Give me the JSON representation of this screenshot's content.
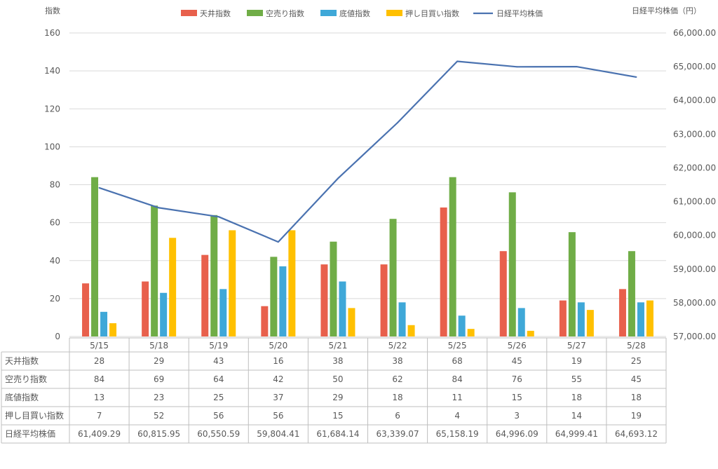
{
  "chart_data": {
    "type": "bar",
    "title": "",
    "ylabel": "指数",
    "y2label": "日経平均株価（円）",
    "ylim": [
      0,
      160
    ],
    "yticks": [
      "0",
      "20",
      "40",
      "60",
      "80",
      "100",
      "120",
      "140",
      "160"
    ],
    "y2lim": [
      57000,
      66000
    ],
    "y2ticks": [
      "57,000.00",
      "58,000.00",
      "59,000.00",
      "60,000.00",
      "61,000.00",
      "62,000.00",
      "63,000.00",
      "64,000.00",
      "65,000.00",
      "66,000.00"
    ],
    "grid": true,
    "legend_position": "top",
    "categories": [
      "5/15",
      "5/18",
      "5/19",
      "5/20",
      "5/21",
      "5/22",
      "5/25",
      "5/26",
      "5/27",
      "5/28"
    ],
    "series": [
      {
        "name": "天井指数",
        "type": "bar",
        "axis": "left",
        "color": "#E8604C",
        "values": [
          28,
          29,
          43,
          16,
          38,
          38,
          68,
          45,
          19,
          25
        ],
        "labels": [
          "28",
          "29",
          "43",
          "16",
          "38",
          "38",
          "68",
          "45",
          "19",
          "25"
        ]
      },
      {
        "name": "空売り指数",
        "type": "bar",
        "axis": "left",
        "color": "#70AD47",
        "values": [
          84,
          69,
          64,
          42,
          50,
          62,
          84,
          76,
          55,
          45
        ],
        "labels": [
          "84",
          "69",
          "64",
          "42",
          "50",
          "62",
          "84",
          "76",
          "55",
          "45"
        ]
      },
      {
        "name": "底値指数",
        "type": "bar",
        "axis": "left",
        "color": "#3FA8D8",
        "values": [
          13,
          23,
          25,
          37,
          29,
          18,
          11,
          15,
          18,
          18
        ],
        "labels": [
          "13",
          "23",
          "25",
          "37",
          "29",
          "18",
          "11",
          "15",
          "18",
          "18"
        ]
      },
      {
        "name": "押し目買い指数",
        "type": "bar",
        "axis": "left",
        "color": "#FFC000",
        "values": [
          7,
          52,
          56,
          56,
          15,
          6,
          4,
          3,
          14,
          19
        ],
        "labels": [
          "7",
          "52",
          "56",
          "56",
          "15",
          "6",
          "4",
          "3",
          "14",
          "19"
        ]
      },
      {
        "name": "日経平均株価",
        "type": "line",
        "axis": "right",
        "color": "#4A72B0",
        "values": [
          61409.29,
          60815.95,
          60550.59,
          59804.41,
          61684.14,
          63339.07,
          65158.19,
          64996.09,
          64999.41,
          64693.12
        ],
        "labels": [
          "61,409.29",
          "60,815.95",
          "60,550.59",
          "59,804.41",
          "61,684.14",
          "63,339.07",
          "65,158.19",
          "64,996.09",
          "64,999.41",
          "64,693.12"
        ]
      }
    ]
  }
}
